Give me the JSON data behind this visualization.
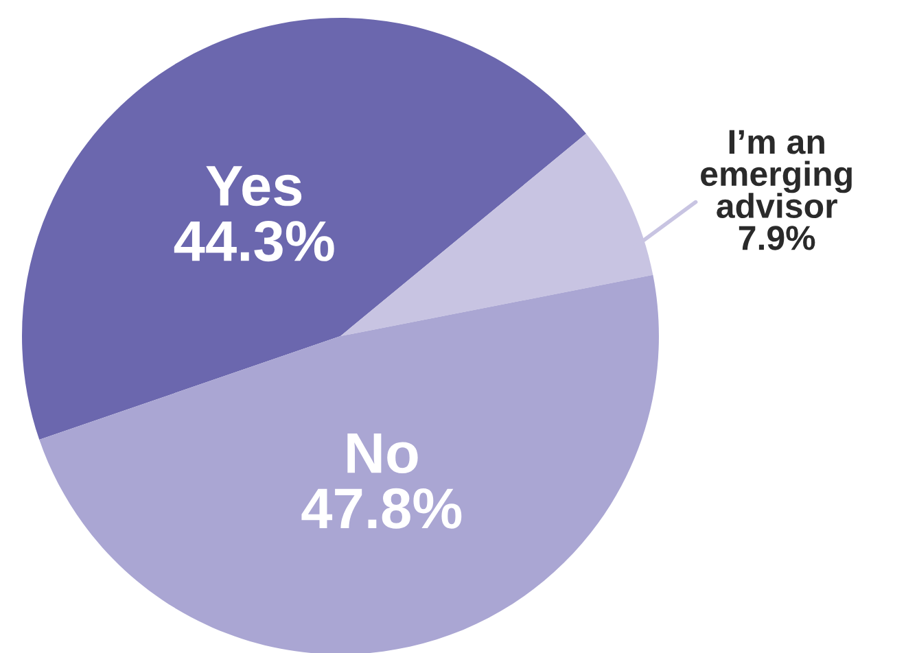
{
  "chart_data": {
    "type": "pie",
    "categories": [
      "Yes",
      "I’m an\nemerging\nadvisor",
      "No"
    ],
    "values": [
      44.3,
      7.9,
      47.8
    ],
    "value_labels": [
      "44.3%",
      "7.9%",
      "47.8%"
    ],
    "colors": [
      "#6b67ae",
      "#c8c4e2",
      "#aaa6d3"
    ]
  }
}
